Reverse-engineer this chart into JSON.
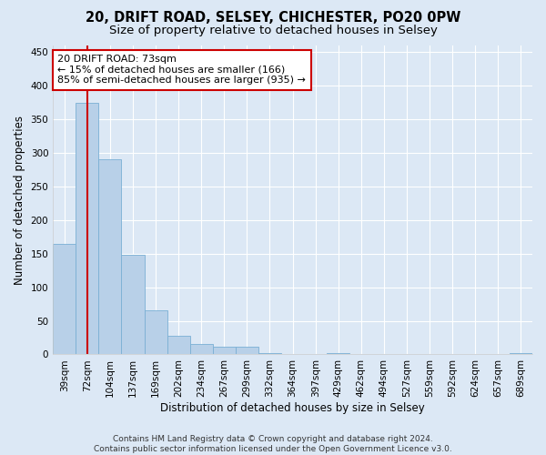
{
  "title": "20, DRIFT ROAD, SELSEY, CHICHESTER, PO20 0PW",
  "subtitle": "Size of property relative to detached houses in Selsey",
  "xlabel": "Distribution of detached houses by size in Selsey",
  "ylabel": "Number of detached properties",
  "categories": [
    "39sqm",
    "72sqm",
    "104sqm",
    "137sqm",
    "169sqm",
    "202sqm",
    "234sqm",
    "267sqm",
    "299sqm",
    "332sqm",
    "364sqm",
    "397sqm",
    "429sqm",
    "462sqm",
    "494sqm",
    "527sqm",
    "559sqm",
    "592sqm",
    "624sqm",
    "657sqm",
    "689sqm"
  ],
  "values": [
    165,
    375,
    290,
    148,
    65,
    28,
    15,
    12,
    11,
    2,
    0,
    0,
    2,
    0,
    0,
    0,
    0,
    0,
    0,
    0,
    2
  ],
  "bar_color": "#b8d0e8",
  "bar_edge_color": "#7aafd4",
  "vline_x": 1,
  "vline_color": "#cc0000",
  "annotation_line1": "20 DRIFT ROAD: 73sqm",
  "annotation_line2": "← 15% of detached houses are smaller (166)",
  "annotation_line3": "85% of semi-detached houses are larger (935) →",
  "annotation_box_color": "#ffffff",
  "annotation_box_edge": "#cc0000",
  "ylim": [
    0,
    460
  ],
  "yticks": [
    0,
    50,
    100,
    150,
    200,
    250,
    300,
    350,
    400,
    450
  ],
  "footer": "Contains HM Land Registry data © Crown copyright and database right 2024.\nContains public sector information licensed under the Open Government Licence v3.0.",
  "bg_color": "#dce8f5",
  "plot_bg_color": "#dce8f5",
  "grid_color": "#ffffff",
  "title_fontsize": 10.5,
  "subtitle_fontsize": 9.5,
  "axis_label_fontsize": 8.5,
  "tick_fontsize": 7.5,
  "annotation_fontsize": 8
}
